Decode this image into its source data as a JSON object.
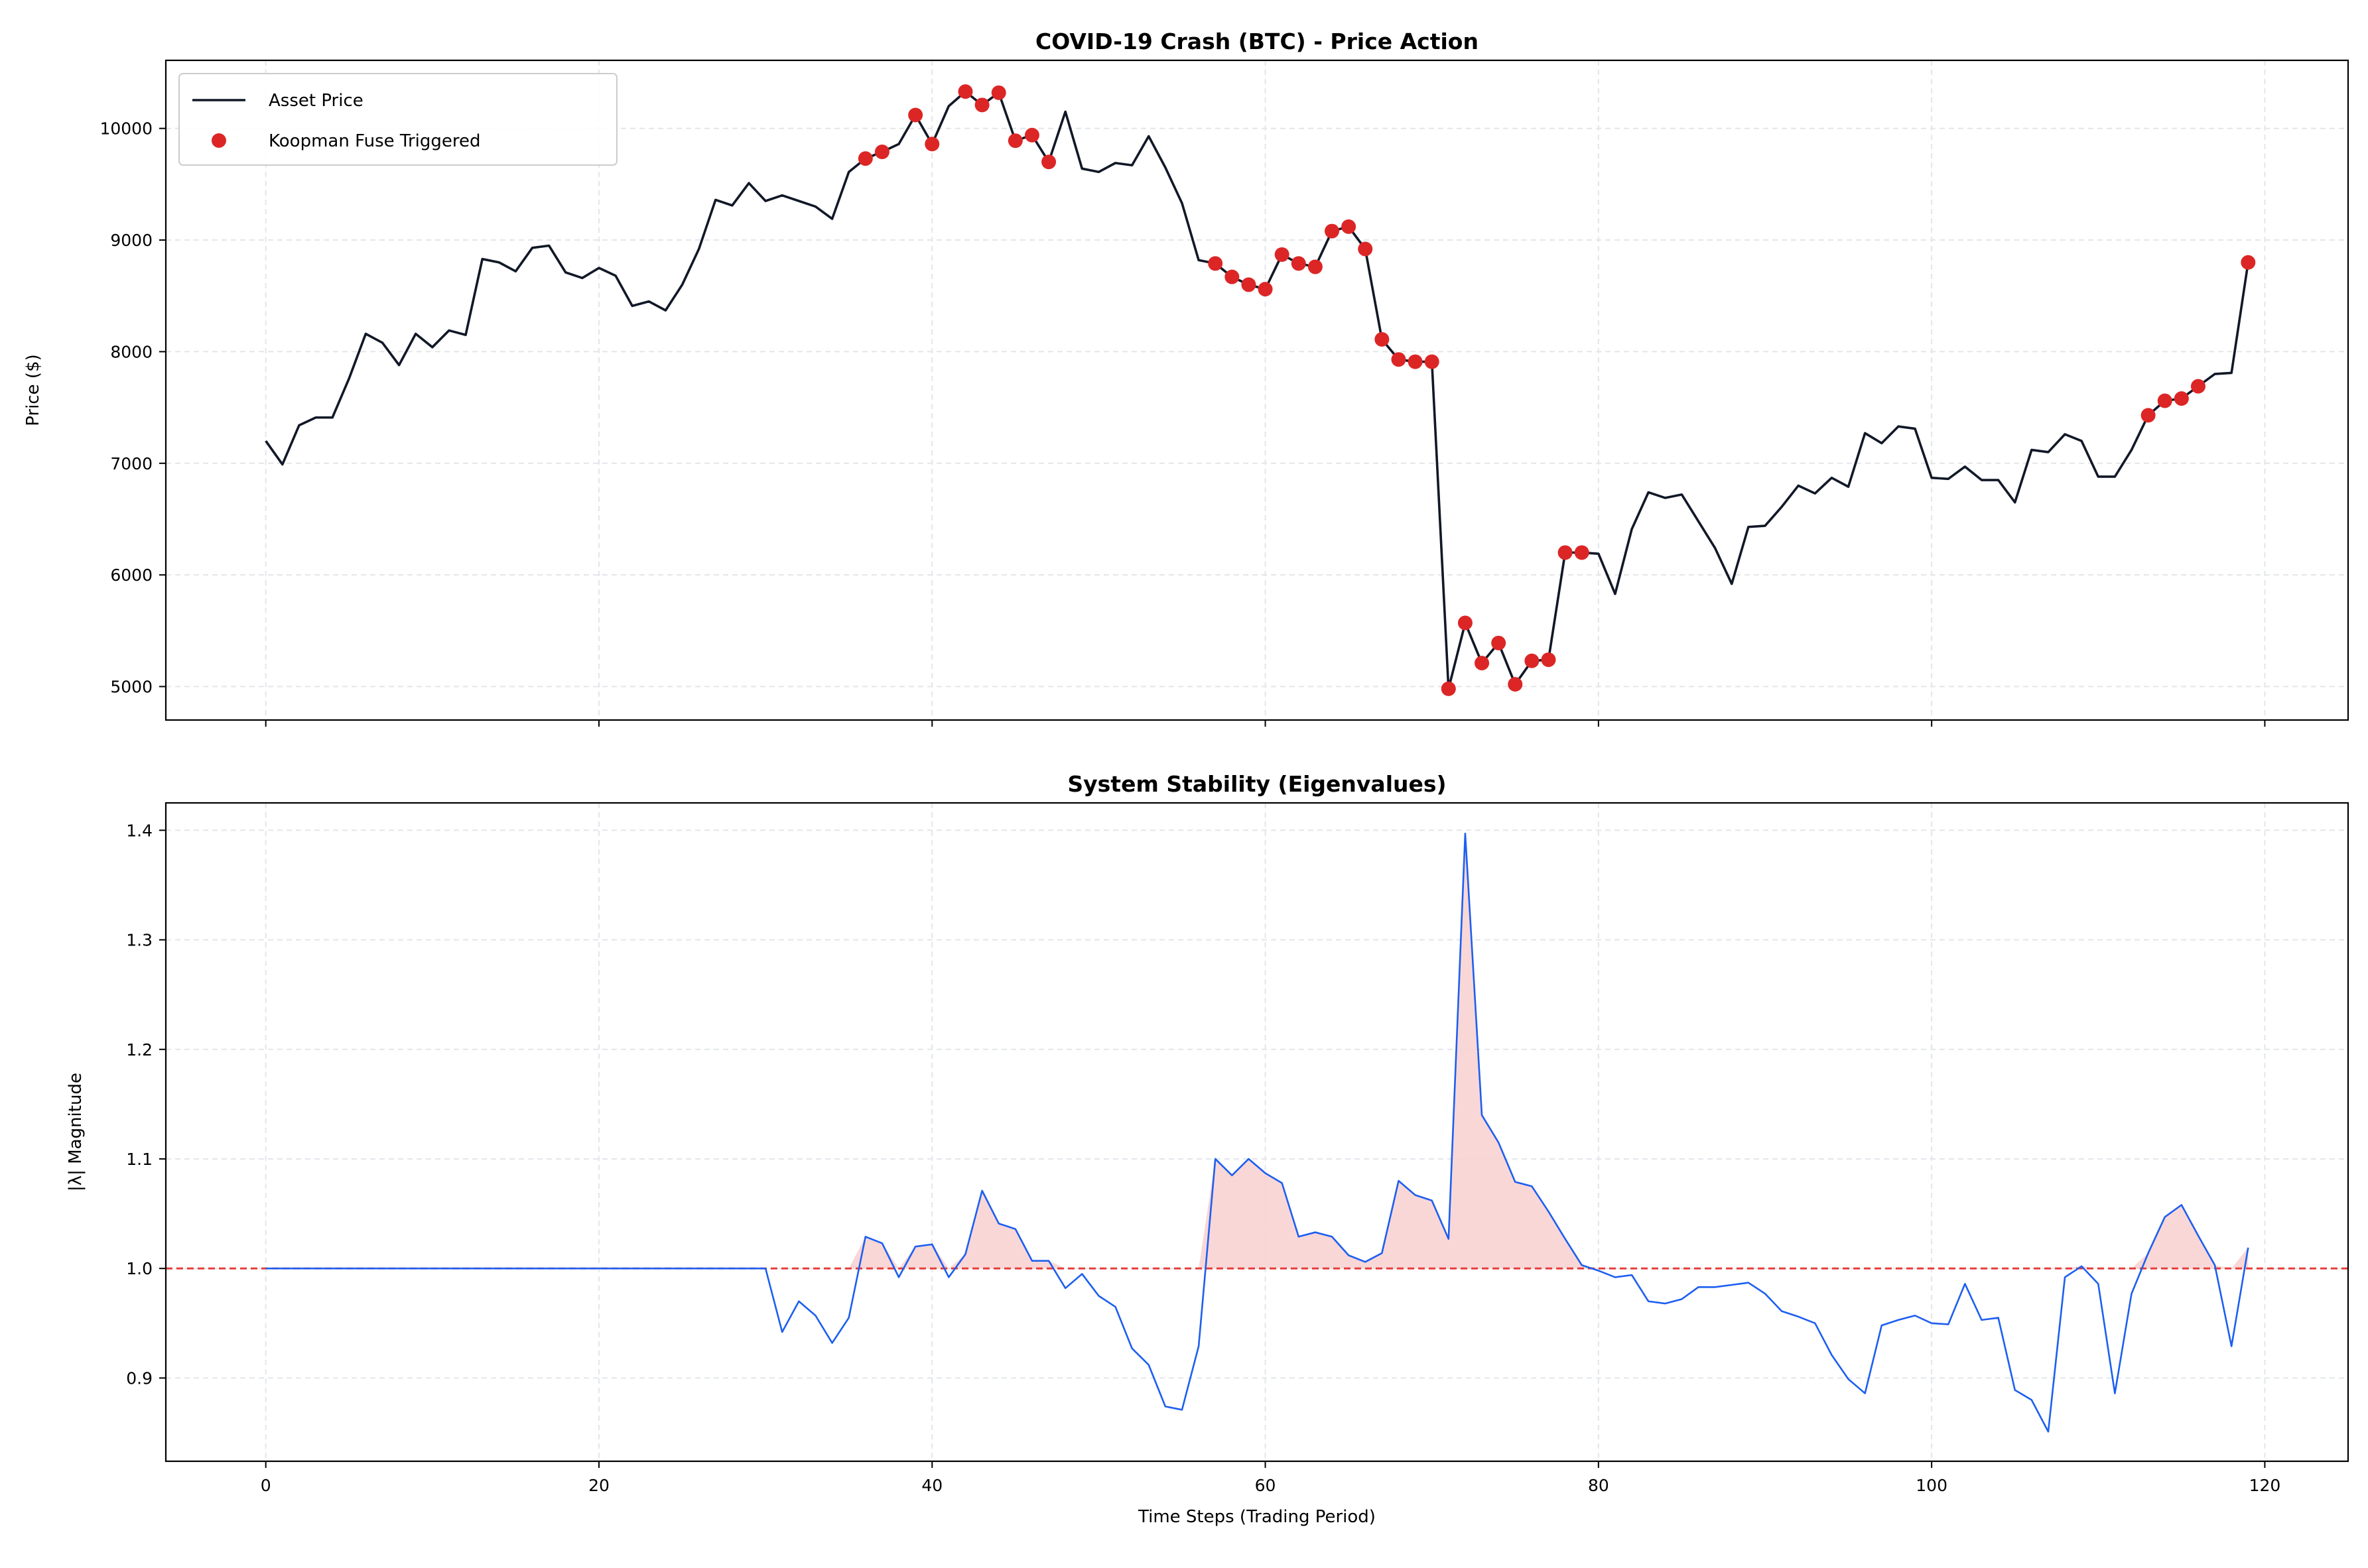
{
  "chart_data": [
    {
      "type": "line",
      "title": "COVID-19 Crash (BTC) - Price Action",
      "xlabel": "",
      "ylabel": "Price ($)",
      "xlim": [
        -6,
        125
      ],
      "ylim": [
        4700,
        10610
      ],
      "xticks": [
        0,
        20,
        40,
        60,
        80,
        100,
        120
      ],
      "yticks": [
        5000,
        6000,
        7000,
        8000,
        9000,
        10000
      ],
      "grid": true,
      "legend": "top-left",
      "series": [
        {
          "name": "Asset Price",
          "kind": "line",
          "color": "#111827",
          "x_start": 0,
          "values": [
            7200,
            6990,
            7340,
            7410,
            7410,
            7760,
            8160,
            8080,
            7880,
            8160,
            8040,
            8190,
            8150,
            8830,
            8800,
            8720,
            8930,
            8950,
            8710,
            8660,
            8750,
            8680,
            8410,
            8450,
            8370,
            8600,
            8920,
            9360,
            9310,
            9510,
            9350,
            9400,
            9350,
            9300,
            9190,
            9610,
            9730,
            9790,
            9860,
            10120,
            9860,
            10200,
            10330,
            10210,
            10320,
            9890,
            9940,
            9700,
            10150,
            9640,
            9610,
            9690,
            9670,
            9930,
            9650,
            9330,
            8820,
            8790,
            8670,
            8600,
            8560,
            8870,
            8790,
            8760,
            9080,
            9120,
            8920,
            8110,
            7930,
            7910,
            7910,
            4980,
            5570,
            5210,
            5390,
            5020,
            5230,
            5240,
            6200,
            6200,
            6190,
            5830,
            6410,
            6740,
            6690,
            6720,
            6480,
            6240,
            5920,
            6430,
            6440,
            6610,
            6800,
            6730,
            6870,
            6790,
            7270,
            7180,
            7330,
            7310,
            6870,
            6860,
            6970,
            6850,
            6850,
            6650,
            7120,
            7100,
            7260,
            7200,
            6880,
            6880,
            7120,
            7430,
            7560,
            7580,
            7690,
            7800,
            7810,
            8800
          ]
        },
        {
          "name": "Koopman Fuse Triggered",
          "kind": "scatter",
          "color": "#dc2626",
          "indices": [
            36,
            37,
            39,
            40,
            42,
            43,
            44,
            45,
            46,
            47,
            57,
            58,
            59,
            60,
            61,
            62,
            63,
            64,
            65,
            66,
            67,
            68,
            69,
            70,
            71,
            72,
            73,
            74,
            75,
            76,
            77,
            78,
            79,
            113,
            114,
            115,
            116,
            119
          ]
        }
      ]
    },
    {
      "type": "line",
      "title": "System Stability (Eigenvalues)",
      "xlabel": "Time Steps (Trading Period)",
      "ylabel": "|λ| Magnitude",
      "xlim": [
        -6,
        125
      ],
      "ylim": [
        0.824,
        1.425
      ],
      "xticks": [
        0,
        20,
        40,
        60,
        80,
        100,
        120
      ],
      "yticks": [
        0.9,
        1.0,
        1.1,
        1.2,
        1.3,
        1.4
      ],
      "ytick_labels": [
        "0.9",
        "1.0",
        "1.1",
        "1.2",
        "1.3",
        "1.4"
      ],
      "grid": true,
      "threshold": 1.0,
      "threshold_color": "#e53935",
      "fill_above_threshold_color": "#f8d0d0",
      "series": [
        {
          "kind": "line",
          "color": "#1d5ff0",
          "x_start": 0,
          "values": [
            1,
            1,
            1,
            1,
            1,
            1,
            1,
            1,
            1,
            1,
            1,
            1,
            1,
            1,
            1,
            1,
            1,
            1,
            1,
            1,
            1,
            1,
            1,
            1,
            1,
            1,
            1,
            1,
            1,
            1,
            1,
            0.942,
            0.97,
            0.957,
            0.932,
            0.955,
            1.029,
            1.023,
            0.992,
            1.02,
            1.022,
            0.992,
            1.013,
            1.071,
            1.041,
            1.036,
            1.007,
            1.007,
            0.982,
            0.995,
            0.975,
            0.965,
            0.927,
            0.912,
            0.874,
            0.871,
            0.929,
            1.1,
            1.085,
            1.1,
            1.087,
            1.078,
            1.029,
            1.033,
            1.029,
            1.012,
            1.006,
            1.014,
            1.08,
            1.067,
            1.062,
            1.027,
            1.397,
            1.14,
            1.115,
            1.079,
            1.075,
            1.052,
            1.027,
            1.003,
            0.998,
            0.992,
            0.994,
            0.97,
            0.968,
            0.972,
            0.983,
            0.983,
            0.985,
            0.987,
            0.977,
            0.961,
            0.956,
            0.95,
            0.921,
            0.899,
            0.886,
            0.948,
            0.953,
            0.957,
            0.95,
            0.949,
            0.986,
            0.953,
            0.955,
            0.889,
            0.88,
            0.851,
            0.992,
            1.002,
            0.986,
            0.886,
            0.977,
            1.014,
            1.047,
            1.058,
            1.03,
            1.003,
            0.929,
            1.019
          ]
        }
      ]
    }
  ]
}
